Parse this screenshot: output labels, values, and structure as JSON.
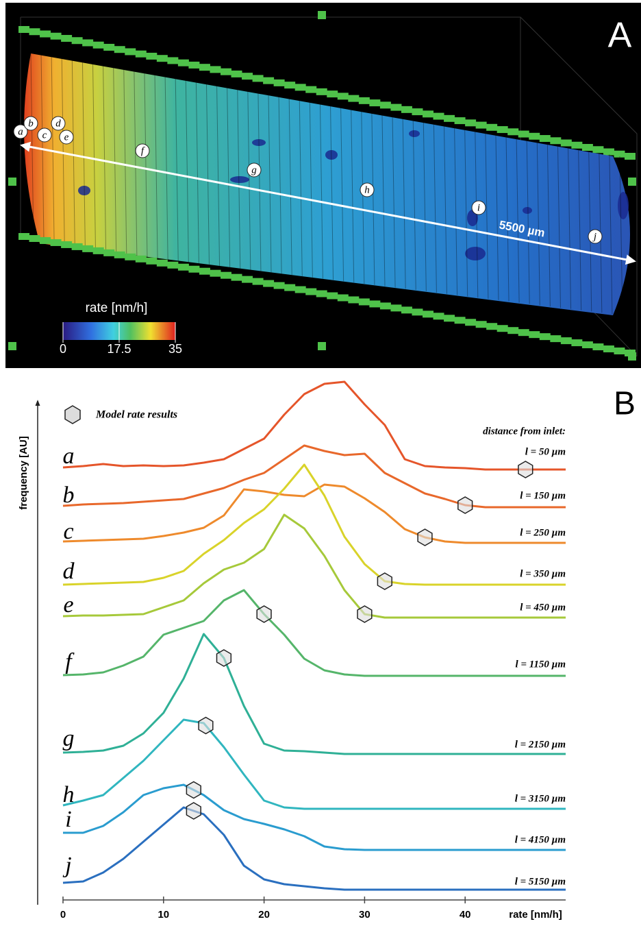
{
  "panel_a": {
    "panel_label": "A",
    "colorbar_title": "rate [nm/h]",
    "colorbar_lim": [
      0,
      35
    ],
    "colorbar_ticks": [
      0,
      17.5,
      35
    ],
    "scale_label": "5500 µm",
    "slice_labels": [
      "a",
      "b",
      "c",
      "d",
      "e",
      "f",
      "g",
      "h",
      "i",
      "j"
    ]
  },
  "chart_data": {
    "type": "line",
    "panel_label": "B",
    "y_label": "frequency [AU]",
    "x_label": "rate [nm/h]",
    "legend_label": "Model rate results",
    "annotation": "distance from inlet:",
    "xlim": [
      0,
      50
    ],
    "xticks": [
      0,
      10,
      20,
      30,
      40
    ],
    "x": [
      0,
      2,
      4,
      6,
      8,
      10,
      12,
      14,
      16,
      18,
      20,
      22,
      24,
      26,
      28,
      30,
      32,
      34,
      36,
      38,
      40,
      42,
      44,
      46,
      48,
      50
    ],
    "series": [
      {
        "name": "a",
        "distance_label": "l = 50 µm",
        "color": "#e5552a",
        "model_rate": 46,
        "values": [
          3,
          5,
          8,
          5,
          6,
          5,
          6,
          10,
          15,
          30,
          45,
          80,
          110,
          125,
          128,
          95,
          65,
          15,
          5,
          3,
          2,
          0,
          0,
          0,
          0,
          0
        ]
      },
      {
        "name": "b",
        "distance_label": "l = 150 µm",
        "color": "#e8682b",
        "model_rate": 40,
        "values": [
          2,
          4,
          5,
          6,
          8,
          10,
          12,
          20,
          28,
          40,
          50,
          70,
          90,
          82,
          76,
          78,
          50,
          35,
          20,
          12,
          3,
          0,
          0,
          0,
          0,
          0
        ]
      },
      {
        "name": "c",
        "distance_label": "l = 250 µm",
        "color": "#ee8a2c",
        "model_rate": 36,
        "values": [
          2,
          3,
          4,
          5,
          6,
          10,
          15,
          22,
          40,
          78,
          75,
          70,
          68,
          85,
          82,
          65,
          45,
          20,
          8,
          2,
          0,
          0,
          0,
          0,
          0,
          0
        ]
      },
      {
        "name": "d",
        "distance_label": "l = 350 µm",
        "color": "#d9d32a",
        "model_rate": 32,
        "values": [
          0,
          1,
          2,
          3,
          4,
          10,
          20,
          45,
          65,
          90,
          110,
          140,
          175,
          130,
          70,
          30,
          5,
          1,
          0,
          0,
          0,
          0,
          0,
          0,
          0,
          0
        ]
      },
      {
        "name": "e",
        "distance_label": "l = 450 µm",
        "color": "#a6c93a",
        "model_rate": 30,
        "values": [
          2,
          3,
          3,
          4,
          5,
          15,
          25,
          50,
          70,
          80,
          100,
          150,
          130,
          90,
          40,
          5,
          0,
          0,
          0,
          0,
          0,
          0,
          0,
          0,
          0,
          0
        ]
      },
      {
        "name": "f",
        "distance_label": "l = 1150 µm",
        "color": "#55b56a",
        "model_rate": 20,
        "values": [
          1,
          2,
          5,
          15,
          28,
          60,
          70,
          80,
          110,
          125,
          90,
          60,
          25,
          8,
          2,
          0,
          0,
          0,
          0,
          0,
          0,
          0,
          0,
          0,
          0,
          0
        ]
      },
      {
        "name": "g",
        "distance_label": "l = 2150 µm",
        "color": "#2fb096",
        "model_rate": 16,
        "values": [
          2,
          3,
          5,
          12,
          30,
          60,
          110,
          175,
          140,
          70,
          15,
          5,
          4,
          2,
          0,
          0,
          0,
          0,
          0,
          0,
          0,
          0,
          0,
          0,
          0,
          0
        ]
      },
      {
        "name": "h",
        "distance_label": "l = 3150 µm",
        "color": "#30b6bf",
        "model_rate": 14.2,
        "values": [
          5,
          12,
          20,
          45,
          70,
          100,
          130,
          125,
          90,
          50,
          12,
          2,
          0,
          0,
          0,
          0,
          0,
          0,
          0,
          0,
          0,
          0,
          0,
          0,
          0,
          0
        ]
      },
      {
        "name": "i",
        "distance_label": "l = 4150 µm",
        "color": "#2a9ccf",
        "model_rate": 13,
        "values": [
          25,
          25,
          35,
          55,
          80,
          90,
          95,
          80,
          58,
          45,
          38,
          30,
          20,
          5,
          1,
          0,
          0,
          0,
          0,
          0,
          0,
          0,
          0,
          0,
          0,
          0
        ]
      },
      {
        "name": "j",
        "distance_label": "l = 5150 µm",
        "color": "#2a6fbf",
        "model_rate": 13,
        "values": [
          10,
          12,
          25,
          45,
          70,
          95,
          120,
          110,
          80,
          35,
          15,
          8,
          5,
          2,
          0,
          0,
          0,
          0,
          0,
          0,
          0,
          0,
          0,
          0,
          0,
          0
        ]
      }
    ]
  }
}
